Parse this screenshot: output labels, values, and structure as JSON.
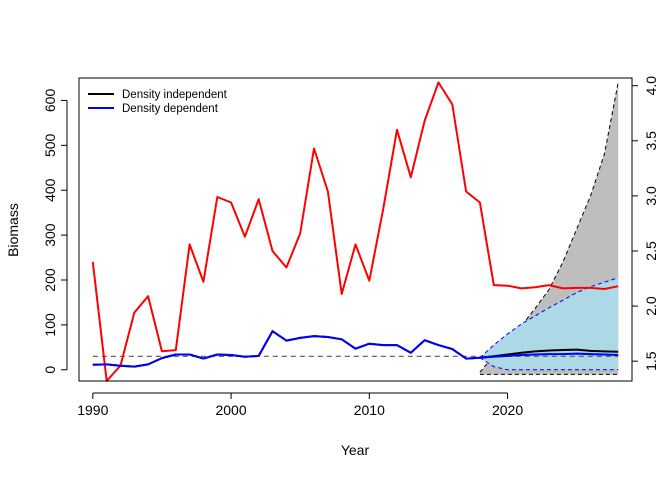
{
  "chart_data": {
    "type": "line",
    "title": "",
    "xlabel": "Year",
    "ylabel": "Biomass",
    "xlim": [
      1989,
      2029
    ],
    "ylim": [
      -25,
      650
    ],
    "y2lim": [
      1.32,
      4.07
    ],
    "x_ticks": [
      1990,
      2000,
      2010,
      2020
    ],
    "y_ticks": [
      0,
      100,
      200,
      300,
      400,
      500,
      600
    ],
    "y2_ticks": [
      1.5,
      2.0,
      2.5,
      3.0,
      3.5,
      4.0
    ],
    "x_tick_labels": [
      "1990",
      "2000",
      "2010",
      "2020"
    ],
    "y_tick_labels": [
      "0",
      "100",
      "200",
      "300",
      "400",
      "500",
      "600"
    ],
    "y2_tick_labels": [
      "1.5",
      "2.0",
      "2.5",
      "3.0",
      "3.5",
      "4.0"
    ],
    "grid": false,
    "legend": {
      "position": "top-left",
      "entries": [
        {
          "label": "Density independent",
          "color": "#000000"
        },
        {
          "label": "Density dependent",
          "color": "#0000FF"
        }
      ]
    },
    "reference_line": {
      "y": 30,
      "color": "#555555",
      "style": "dashed"
    },
    "series": [
      {
        "axis": "right",
        "color": "#FF0000",
        "x": [
          1990,
          1991,
          1992,
          1993,
          1994,
          1995,
          1996,
          1997,
          1998,
          1999,
          2000,
          2001,
          2002,
          2003,
          2004,
          2005,
          2006,
          2007,
          2008,
          2009,
          2010,
          2011,
          2012,
          2013,
          2014,
          2015,
          2016,
          2017,
          2018,
          2019,
          2020,
          2021,
          2022,
          2023,
          2024,
          2025,
          2026,
          2027,
          2028
        ],
        "values": [
          2.4,
          1.32,
          1.46,
          1.94,
          2.09,
          1.59,
          1.6,
          2.56,
          2.22,
          2.99,
          2.94,
          2.63,
          2.97,
          2.5,
          2.35,
          2.66,
          3.43,
          3.04,
          2.11,
          2.56,
          2.23,
          2.88,
          3.6,
          3.17,
          3.68,
          4.03,
          3.83,
          3.04,
          2.94,
          2.19,
          2.185,
          2.16,
          2.17,
          2.19,
          2.16,
          2.165,
          2.165,
          2.155,
          2.18
        ]
      },
      {
        "axis": "left",
        "color": "#000000",
        "x": [
          1990,
          1991,
          1992,
          1993,
          1994,
          1995,
          1996,
          1997,
          1998,
          1999,
          2000,
          2001,
          2002,
          2003,
          2004,
          2005,
          2006,
          2007,
          2008,
          2009,
          2010,
          2011,
          2012,
          2013,
          2014,
          2015,
          2016,
          2017,
          2018,
          2019,
          2020,
          2021,
          2022,
          2023,
          2024,
          2025,
          2026,
          2027,
          2028
        ],
        "values": [
          11,
          12,
          9,
          7,
          12,
          26,
          34,
          34,
          25,
          34,
          33,
          29,
          31,
          86,
          65,
          71,
          75,
          73,
          68,
          47,
          58,
          55,
          55,
          38,
          66,
          55,
          46,
          25,
          27,
          30,
          34,
          38,
          41,
          43,
          44,
          45,
          42,
          41,
          40
        ]
      },
      {
        "axis": "left",
        "color": "#0000FF",
        "x": [
          1990,
          1991,
          1992,
          1993,
          1994,
          1995,
          1996,
          1997,
          1998,
          1999,
          2000,
          2001,
          2002,
          2003,
          2004,
          2005,
          2006,
          2007,
          2008,
          2009,
          2010,
          2011,
          2012,
          2013,
          2014,
          2015,
          2016,
          2017,
          2018,
          2019,
          2020,
          2021,
          2022,
          2023,
          2024,
          2025,
          2026,
          2027,
          2028
        ],
        "values": [
          11,
          12,
          9,
          7,
          12,
          26,
          34,
          34,
          25,
          34,
          33,
          29,
          31,
          86,
          65,
          71,
          75,
          73,
          68,
          47,
          58,
          55,
          55,
          38,
          66,
          55,
          46,
          25,
          27,
          29,
          31,
          33,
          34,
          35,
          35,
          36,
          35,
          34,
          33
        ]
      }
    ],
    "bands": [
      {
        "axis": "right",
        "fill": "#BEBEBE",
        "edge_color": "#000000",
        "x": [
          2018,
          2019,
          2020,
          2021,
          2022,
          2023,
          2024,
          2025,
          2026,
          2027,
          2028
        ],
        "lower": [
          1.38,
          1.38,
          1.38,
          1.38,
          1.38,
          1.38,
          1.38,
          1.38,
          1.38,
          1.38,
          1.38
        ],
        "upper": [
          1.4,
          1.55,
          1.68,
          1.82,
          1.98,
          2.15,
          2.4,
          2.7,
          3.0,
          3.38,
          4.03
        ]
      },
      {
        "axis": "left",
        "fill": "#ADD8E6",
        "edge_color": "#0000FF",
        "x": [
          2018,
          2019,
          2020,
          2021,
          2022,
          2023,
          2024,
          2025,
          2026,
          2027,
          2028
        ],
        "lower": [
          27,
          7,
          0,
          0,
          0,
          0,
          0,
          0,
          0,
          0,
          0
        ],
        "upper": [
          27,
          55,
          80,
          102,
          120,
          138,
          155,
          172,
          185,
          195,
          205
        ]
      }
    ]
  }
}
